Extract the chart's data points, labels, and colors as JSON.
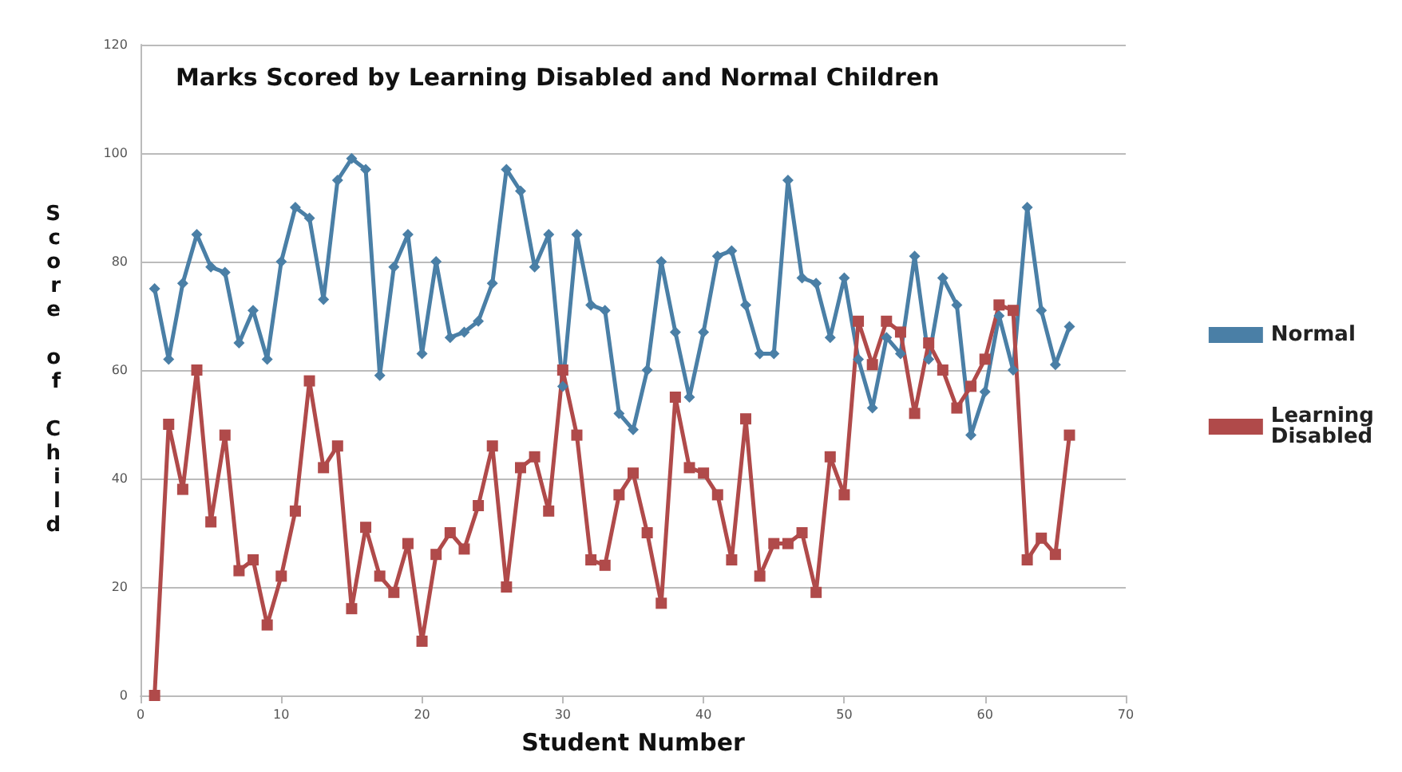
{
  "chart_data": {
    "type": "line",
    "title": "Marks Scored by Learning Disabled and Normal Children",
    "xlabel": "Student Number",
    "ylabel": "Score of Child",
    "x": [
      1,
      2,
      3,
      4,
      5,
      6,
      7,
      8,
      9,
      10,
      11,
      12,
      13,
      14,
      15,
      16,
      17,
      18,
      19,
      20,
      21,
      22,
      23,
      24,
      25,
      26,
      27,
      28,
      29,
      30,
      31,
      32,
      33,
      34,
      35,
      36,
      37,
      38,
      39,
      40,
      41,
      42,
      43,
      44,
      45,
      46,
      47,
      48,
      49,
      50,
      51,
      52,
      53,
      54,
      55,
      56,
      57,
      58,
      59,
      60,
      61,
      62,
      63,
      64,
      65,
      66
    ],
    "series": [
      {
        "name": "Normal",
        "color": "#4a7fa6",
        "marker": "diamond",
        "values": [
          75,
          62,
          76,
          85,
          79,
          78,
          65,
          71,
          62,
          80,
          90,
          88,
          73,
          95,
          99,
          97,
          59,
          79,
          85,
          63,
          80,
          66,
          67,
          69,
          76,
          97,
          93,
          79,
          85,
          57,
          85,
          72,
          71,
          52,
          49,
          60,
          80,
          67,
          55,
          67,
          81,
          82,
          72,
          63,
          63,
          95,
          77,
          76,
          66,
          77,
          62,
          53,
          66,
          63,
          81,
          62,
          77,
          72,
          48,
          56,
          70,
          60,
          90,
          71,
          61,
          68
        ]
      },
      {
        "name": "Learning Disabled",
        "color": "#b04a4a",
        "marker": "square",
        "values": [
          0,
          50,
          38,
          60,
          32,
          48,
          23,
          25,
          13,
          22,
          34,
          58,
          42,
          46,
          16,
          31,
          22,
          19,
          28,
          10,
          26,
          30,
          27,
          35,
          46,
          20,
          42,
          44,
          34,
          60,
          48,
          25,
          24,
          37,
          41,
          30,
          17,
          55,
          42,
          41,
          37,
          25,
          51,
          22,
          28,
          28,
          30,
          19,
          44,
          37,
          69,
          61,
          69,
          67,
          52,
          65,
          60,
          53,
          57,
          62,
          72,
          71,
          25,
          29,
          26,
          48
        ]
      }
    ],
    "xlim": [
      0,
      70
    ],
    "xticks": [
      0,
      10,
      20,
      30,
      40,
      50,
      60,
      70
    ],
    "ylim": [
      0,
      120
    ],
    "yticks": [
      0,
      20,
      40,
      60,
      80,
      100,
      120
    ],
    "grid": "y",
    "legend": "right",
    "line_style": "solid"
  }
}
